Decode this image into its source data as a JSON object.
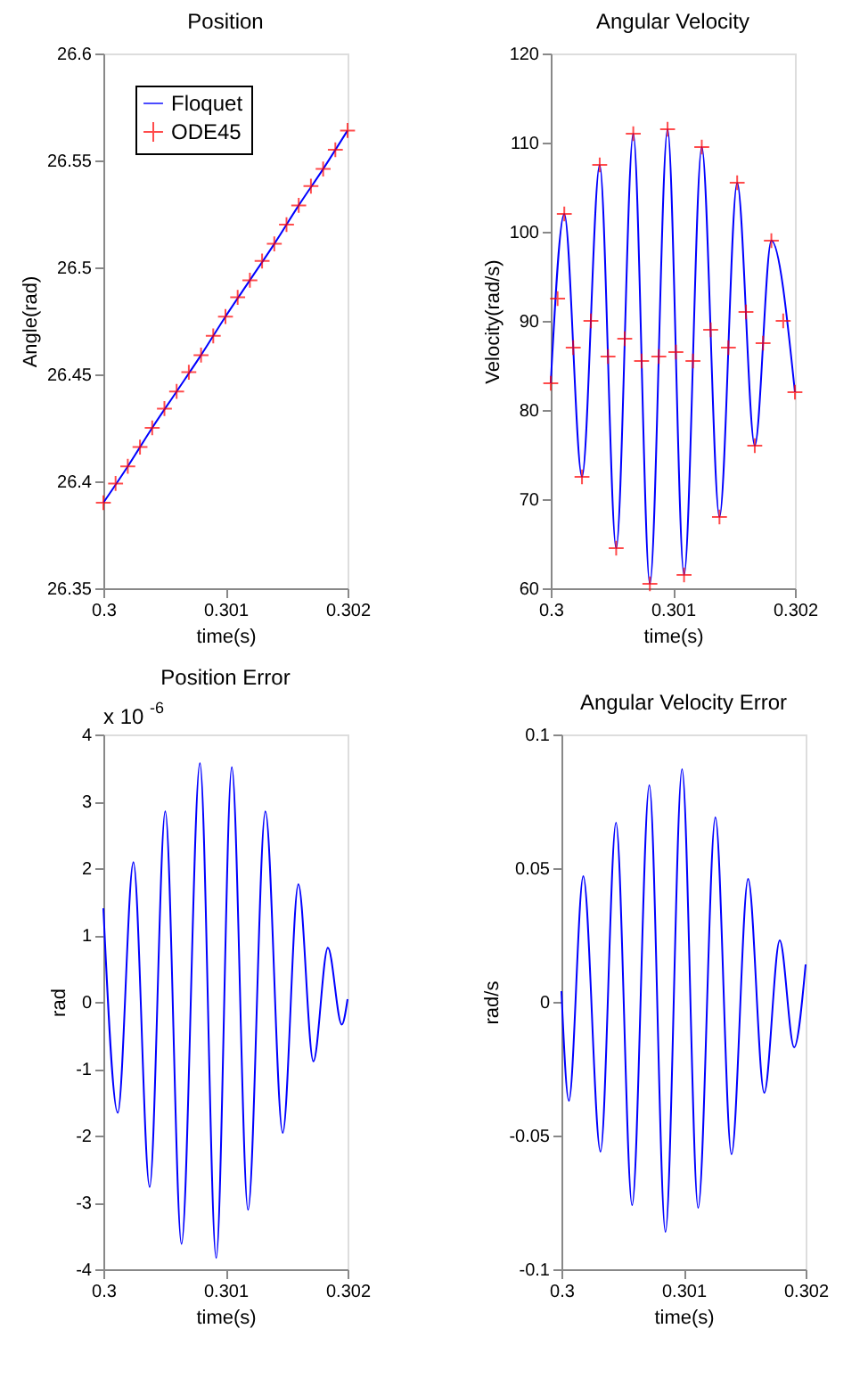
{
  "chart_data": [
    {
      "type": "line",
      "title": "Position",
      "xlabel": "time(s)",
      "ylabel": "Angle(rad)",
      "xlim": [
        0.3,
        0.302
      ],
      "xticks": [
        0.3,
        0.301,
        0.302
      ],
      "ylim": [
        26.35,
        26.6
      ],
      "yticks": [
        26.35,
        26.4,
        26.45,
        26.5,
        26.55,
        26.6
      ],
      "grid": false,
      "legend": "top left",
      "series": [
        {
          "name": "Floquet",
          "color": "#0000ff",
          "marker": "none",
          "line_style": "solid",
          "x": [
            0.3,
            0.3002,
            0.3004,
            0.3006,
            0.3008,
            0.301,
            0.3012,
            0.3014,
            0.3016,
            0.3018,
            0.302
          ],
          "values": [
            26.39,
            26.407,
            26.425,
            26.442,
            26.459,
            26.477,
            26.494,
            26.511,
            26.529,
            26.546,
            26.564
          ]
        },
        {
          "name": "ODE45",
          "type": "scatter",
          "color": "#ff0000",
          "marker": "cross",
          "x": [
            0.3,
            0.3001,
            0.3002,
            0.3003,
            0.3004,
            0.3005,
            0.3006,
            0.3007,
            0.3008,
            0.3009,
            0.301,
            0.3011,
            0.3012,
            0.3013,
            0.3014,
            0.3015,
            0.3016,
            0.3017,
            0.3018,
            0.3019,
            0.302
          ],
          "values": [
            26.39,
            26.399,
            26.407,
            26.416,
            26.425,
            26.434,
            26.442,
            26.451,
            26.459,
            26.468,
            26.477,
            26.486,
            26.494,
            26.503,
            26.511,
            26.52,
            26.529,
            26.538,
            26.546,
            26.555,
            26.564
          ]
        }
      ]
    },
    {
      "type": "line",
      "title": "Angular Velocity",
      "xlabel": "time(s)",
      "ylabel": "Velocity(rad/s)",
      "xlim": [
        0.3,
        0.302
      ],
      "xticks": [
        0.3,
        0.301,
        0.302
      ],
      "ylim": [
        60,
        120
      ],
      "yticks": [
        60,
        70,
        80,
        90,
        100,
        110,
        120
      ],
      "grid": false,
      "series": [
        {
          "color": "#0000ff",
          "marker": "none",
          "line_style": "solid",
          "x": [
            0.3,
            0.300111,
            0.300256,
            0.300401,
            0.300536,
            0.300676,
            0.300812,
            0.300957,
            0.301092,
            0.301237,
            0.301382,
            0.301527,
            0.301671,
            0.301807,
            0.302
          ],
          "values": [
            83,
            102,
            72.5,
            107.5,
            64.5,
            111,
            60.5,
            111.5,
            61.5,
            109.5,
            68,
            105.5,
            76,
            99,
            82
          ]
        },
        {
          "type": "scatter",
          "color": "#ff0000",
          "marker": "cross",
          "x": [
            0.3,
            0.300056,
            0.300111,
            0.300184,
            0.300256,
            0.300329,
            0.300401,
            0.300469,
            0.300536,
            0.300606,
            0.300676,
            0.300744,
            0.300812,
            0.300885,
            0.300957,
            0.301025,
            0.301092,
            0.301165,
            0.301237,
            0.30131,
            0.301382,
            0.301455,
            0.301527,
            0.301599,
            0.301671,
            0.301739,
            0.301807,
            0.301904,
            0.302
          ],
          "values": [
            83,
            92.5,
            102,
            87,
            72.5,
            90,
            107.5,
            86,
            64.5,
            88,
            111,
            85.5,
            60.5,
            86,
            111.5,
            86.5,
            61.5,
            85.5,
            109.5,
            89,
            68,
            87,
            105.5,
            91,
            76,
            87.5,
            99,
            90,
            82
          ]
        }
      ]
    },
    {
      "type": "line",
      "title": "Position Error",
      "xlabel": "time(s)",
      "ylabel": "rad",
      "annotations": [
        "x 10$^{-6}$"
      ],
      "xlim": [
        0.3,
        0.302
      ],
      "xticks": [
        0.3,
        0.301,
        0.302
      ],
      "ylim": [
        -4,
        4
      ],
      "yticks": [
        -4,
        -3,
        -2,
        -1,
        0,
        1,
        2,
        3,
        4
      ],
      "grid": false,
      "series": [
        {
          "color": "#0000ff",
          "marker": "none",
          "line_style": "solid",
          "x": [
            0.3,
            0.300118,
            0.300246,
            0.300379,
            0.300507,
            0.30064,
            0.300791,
            0.300924,
            0.301052,
            0.301185,
            0.301327,
            0.301469,
            0.301597,
            0.30172,
            0.301839,
            0.301953,
            0.302
          ],
          "values": [
            1.4,
            -1.66,
            2.09,
            -2.77,
            2.85,
            -3.62,
            3.57,
            -3.83,
            3.51,
            -3.11,
            2.85,
            -1.96,
            1.76,
            -0.89,
            0.81,
            -0.34,
            0.04
          ]
        }
      ]
    },
    {
      "type": "line",
      "title": "Angular Velocity Error",
      "xlabel": "time(s)",
      "ylabel": "rad/s",
      "xlim": [
        0.3,
        0.302
      ],
      "xticks": [
        0.3,
        0.301,
        0.302
      ],
      "ylim": [
        -0.1,
        0.1
      ],
      "yticks": [
        -0.1,
        -0.05,
        0,
        0.05,
        0.1
      ],
      "grid": false,
      "series": [
        {
          "color": "#0000ff",
          "marker": "none",
          "line_style": "solid",
          "x": [
            0.3,
            0.300061,
            0.300179,
            0.30032,
            0.300447,
            0.300579,
            0.30072,
            0.300852,
            0.300988,
            0.30112,
            0.301261,
            0.301393,
            0.301529,
            0.301661,
            0.301788,
            0.301906,
            0.302
          ],
          "values": [
            0.004,
            -0.037,
            0.047,
            -0.056,
            0.067,
            -0.076,
            0.081,
            -0.086,
            0.087,
            -0.077,
            0.069,
            -0.057,
            0.046,
            -0.034,
            0.023,
            -0.017,
            0.014
          ]
        }
      ]
    }
  ]
}
